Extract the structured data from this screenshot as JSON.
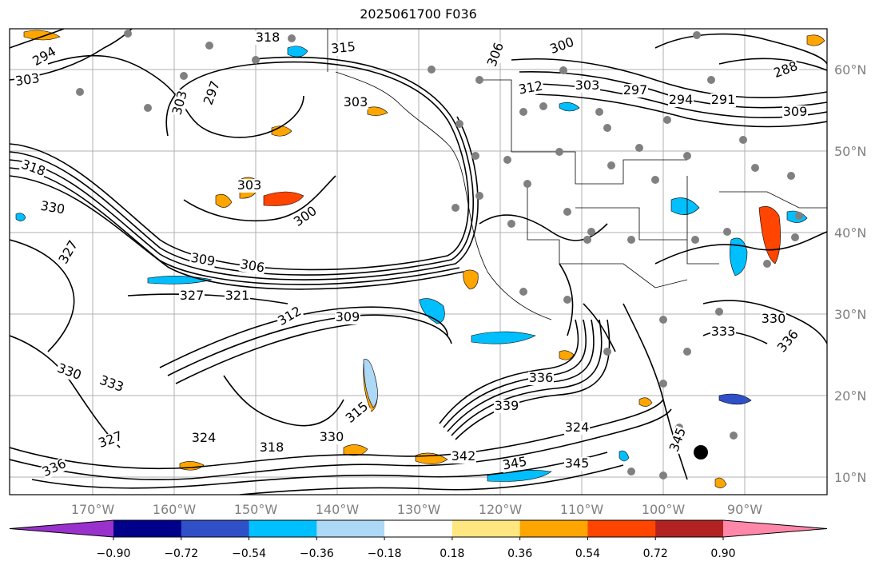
{
  "title": "2025061700 F036",
  "map": {
    "lat_labels": [
      "60°N",
      "50°N",
      "40°N",
      "30°N",
      "20°N",
      "10°N"
    ],
    "lon_labels": [
      "170°W",
      "160°W",
      "150°W",
      "140°W",
      "130°W",
      "120°W",
      "110°W",
      "100°W",
      "90°W"
    ],
    "contour_labels": [
      "294",
      "303",
      "318",
      "315",
      "306",
      "300",
      "303",
      "312",
      "303",
      "297",
      "294",
      "291",
      "288",
      "309",
      "303",
      "303",
      "297",
      "318",
      "330",
      "327",
      "300",
      "309",
      "306",
      "327",
      "321",
      "312",
      "309",
      "330",
      "333",
      "336",
      "315",
      "339",
      "324",
      "327",
      "324",
      "318",
      "330",
      "342",
      "345",
      "345",
      "336",
      "333",
      "330",
      "336",
      "345"
    ]
  },
  "colorbar": {
    "tick_labels": [
      "−0.90",
      "−0.72",
      "−0.54",
      "−0.36",
      "−0.18",
      "0.18",
      "0.36",
      "0.54",
      "0.72",
      "0.90"
    ],
    "colors": [
      "#9932cc",
      "#00008b",
      "#3050c8",
      "#00bfff",
      "#add8f6",
      "#ffffff",
      "#ffe680",
      "#ffa500",
      "#ff4500",
      "#b22222",
      "#ff88aa"
    ]
  }
}
